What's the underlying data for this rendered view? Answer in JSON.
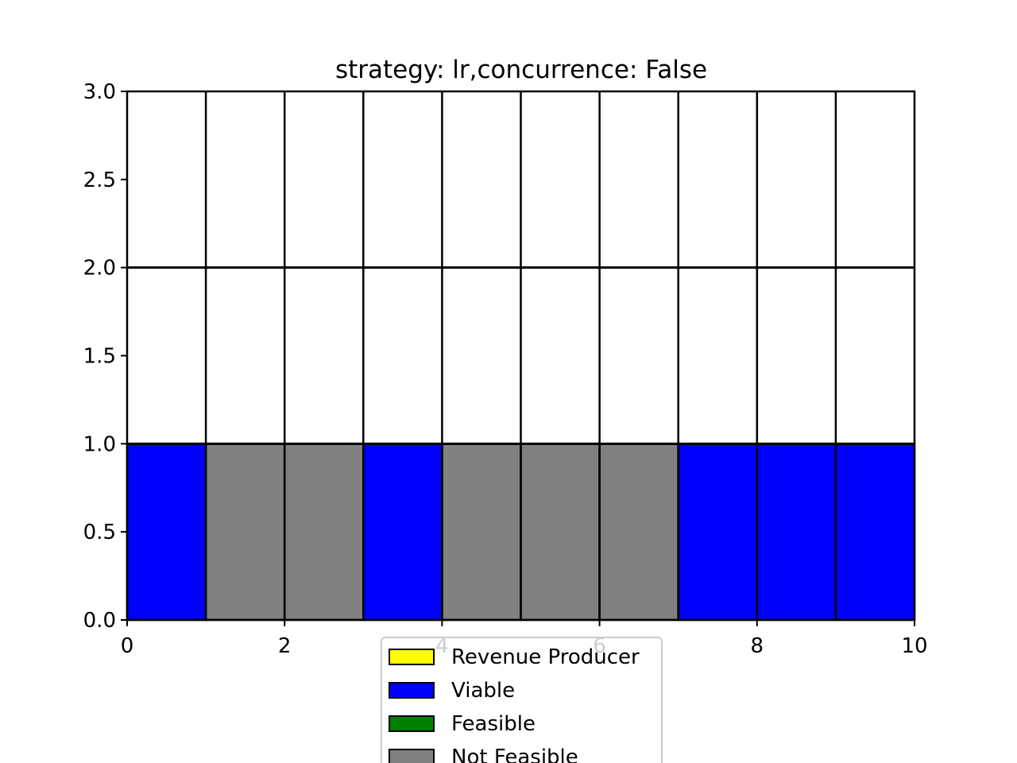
{
  "chart_data": {
    "type": "bar",
    "title": "strategy: lr,concurrence: False",
    "xlabel": "",
    "ylabel": "",
    "xlim": [
      0,
      10
    ],
    "ylim": [
      0,
      3.0
    ],
    "x_ticks": [
      "0",
      "2",
      "4",
      "6",
      "8",
      "10"
    ],
    "y_ticks": [
      "0.0",
      "0.5",
      "1.0",
      "1.5",
      "2.0",
      "2.5",
      "3.0"
    ],
    "grid_rows": 3,
    "cells": [
      {
        "x": 0,
        "y": 0,
        "status": "Viable"
      },
      {
        "x": 1,
        "y": 0,
        "status": "Not Feasible"
      },
      {
        "x": 2,
        "y": 0,
        "status": "Not Feasible"
      },
      {
        "x": 3,
        "y": 0,
        "status": "Viable"
      },
      {
        "x": 4,
        "y": 0,
        "status": "Not Feasible"
      },
      {
        "x": 5,
        "y": 0,
        "status": "Not Feasible"
      },
      {
        "x": 6,
        "y": 0,
        "status": "Not Feasible"
      },
      {
        "x": 7,
        "y": 0,
        "status": "Viable"
      },
      {
        "x": 8,
        "y": 0,
        "status": "Viable"
      },
      {
        "x": 9,
        "y": 0,
        "status": "Viable"
      }
    ],
    "legend": {
      "position": "bottom-center",
      "entries": [
        {
          "label": "Revenue Producer",
          "color": "#ffff00"
        },
        {
          "label": "Viable",
          "color": "#0000ff"
        },
        {
          "label": "Feasible",
          "color": "#008000"
        },
        {
          "label": "Not Feasible",
          "color": "#808080"
        }
      ]
    }
  }
}
